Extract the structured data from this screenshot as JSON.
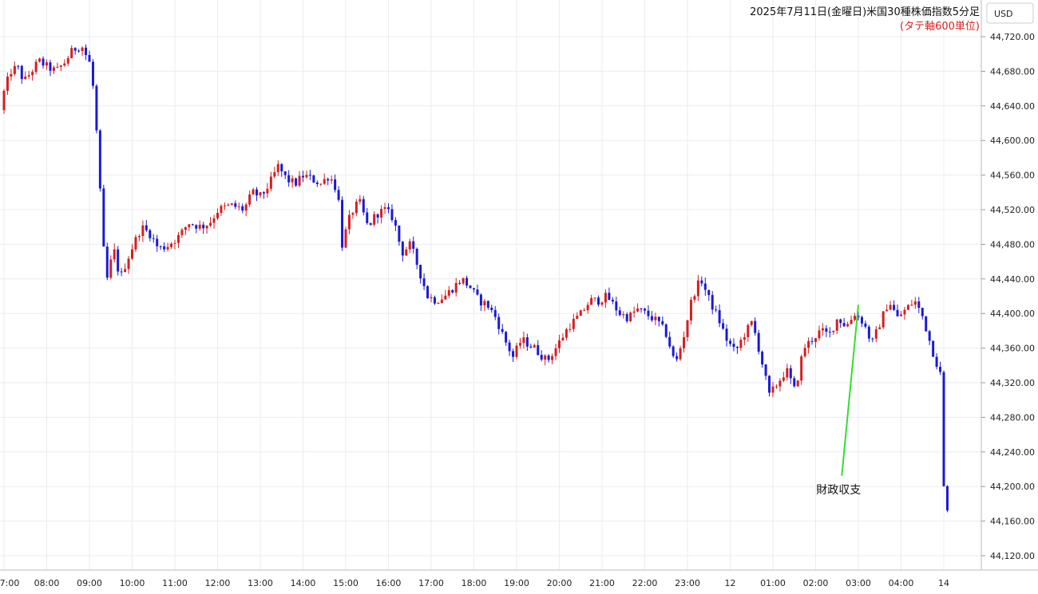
{
  "chart_data": {
    "type": "candlestick",
    "title": "2025年7月11日(金曜日)米国30種株価指数5分足",
    "subtitle": "(タテ軸600単位)",
    "currency_badge": "USD",
    "ylim": [
      44110,
      44750
    ],
    "y_ticks": [
      44120,
      44160,
      44200,
      44240,
      44280,
      44320,
      44360,
      44400,
      44440,
      44480,
      44520,
      44560,
      44600,
      44640,
      44680,
      44720
    ],
    "y_tick_labels": [
      "44,120.00",
      "44,160.00",
      "44,200.00",
      "44,240.00",
      "44,280.00",
      "44,320.00",
      "44,360.00",
      "44,400.00",
      "44,440.00",
      "44,480.00",
      "44,520.00",
      "44,560.00",
      "44,600.00",
      "44,640.00",
      "44,680.00",
      "44,720.00"
    ],
    "x_ticks": [
      {
        "label": "7:00",
        "hour": 7
      },
      {
        "label": "08:00",
        "hour": 8
      },
      {
        "label": "09:00",
        "hour": 9
      },
      {
        "label": "10:00",
        "hour": 10
      },
      {
        "label": "11:00",
        "hour": 11
      },
      {
        "label": "12:00",
        "hour": 12
      },
      {
        "label": "13:00",
        "hour": 13
      },
      {
        "label": "14:00",
        "hour": 14
      },
      {
        "label": "15:00",
        "hour": 15
      },
      {
        "label": "16:00",
        "hour": 16
      },
      {
        "label": "17:00",
        "hour": 17
      },
      {
        "label": "18:00",
        "hour": 18
      },
      {
        "label": "19:00",
        "hour": 19
      },
      {
        "label": "20:00",
        "hour": 20
      },
      {
        "label": "21:00",
        "hour": 21
      },
      {
        "label": "22:00",
        "hour": 22
      },
      {
        "label": "23:00",
        "hour": 23
      },
      {
        "label": "12",
        "hour": 24
      },
      {
        "label": "01:00",
        "hour": 25
      },
      {
        "label": "02:00",
        "hour": 26
      },
      {
        "label": "03:00",
        "hour": 27
      },
      {
        "label": "04:00",
        "hour": 28
      },
      {
        "label": "14",
        "hour": 29
      }
    ],
    "x_range_hours": [
      7.0,
      29.2
    ],
    "bar_minutes": 5,
    "start_hour": 7.0,
    "up_color": "#d61f1f",
    "down_color": "#1a1ad6",
    "grid": true,
    "annotation": {
      "text": "財政収支",
      "hour": 26.5,
      "price": 44205,
      "target_hour": 27.0,
      "target_price": 44410,
      "line_color": "#33dd33"
    },
    "anchors": [
      [
        7.0,
        44635
      ],
      [
        7.1,
        44660
      ],
      [
        7.25,
        44680
      ],
      [
        7.4,
        44685
      ],
      [
        7.55,
        44668
      ],
      [
        7.7,
        44678
      ],
      [
        7.9,
        44692
      ],
      [
        8.1,
        44685
      ],
      [
        8.3,
        44680
      ],
      [
        8.5,
        44690
      ],
      [
        8.7,
        44705
      ],
      [
        8.9,
        44710
      ],
      [
        9.1,
        44688
      ],
      [
        9.2,
        44650
      ],
      [
        9.3,
        44570
      ],
      [
        9.4,
        44480
      ],
      [
        9.5,
        44440
      ],
      [
        9.65,
        44475
      ],
      [
        9.8,
        44440
      ],
      [
        9.95,
        44460
      ],
      [
        10.1,
        44478
      ],
      [
        10.3,
        44500
      ],
      [
        10.5,
        44492
      ],
      [
        10.7,
        44475
      ],
      [
        10.9,
        44478
      ],
      [
        11.2,
        44490
      ],
      [
        11.4,
        44505
      ],
      [
        11.7,
        44500
      ],
      [
        11.9,
        44505
      ],
      [
        12.1,
        44520
      ],
      [
        12.4,
        44525
      ],
      [
        12.7,
        44520
      ],
      [
        12.9,
        44540
      ],
      [
        13.1,
        44535
      ],
      [
        13.3,
        44550
      ],
      [
        13.5,
        44570
      ],
      [
        13.7,
        44555
      ],
      [
        13.9,
        44550
      ],
      [
        14.1,
        44560
      ],
      [
        14.3,
        44555
      ],
      [
        14.5,
        44550
      ],
      [
        14.7,
        44560
      ],
      [
        14.9,
        44540
      ],
      [
        15.0,
        44480
      ],
      [
        15.2,
        44515
      ],
      [
        15.4,
        44530
      ],
      [
        15.6,
        44500
      ],
      [
        15.8,
        44515
      ],
      [
        16.0,
        44520
      ],
      [
        16.2,
        44510
      ],
      [
        16.4,
        44470
      ],
      [
        16.6,
        44480
      ],
      [
        16.8,
        44450
      ],
      [
        17.0,
        44420
      ],
      [
        17.2,
        44415
      ],
      [
        17.4,
        44420
      ],
      [
        17.6,
        44430
      ],
      [
        17.8,
        44440
      ],
      [
        18.0,
        44430
      ],
      [
        18.2,
        44415
      ],
      [
        18.4,
        44410
      ],
      [
        18.6,
        44395
      ],
      [
        18.8,
        44370
      ],
      [
        19.0,
        44350
      ],
      [
        19.2,
        44370
      ],
      [
        19.5,
        44360
      ],
      [
        19.8,
        44345
      ],
      [
        20.0,
        44360
      ],
      [
        20.3,
        44385
      ],
      [
        20.6,
        44400
      ],
      [
        20.8,
        44415
      ],
      [
        21.0,
        44415
      ],
      [
        21.2,
        44420
      ],
      [
        21.5,
        44400
      ],
      [
        21.7,
        44395
      ],
      [
        21.9,
        44405
      ],
      [
        22.1,
        44400
      ],
      [
        22.4,
        44390
      ],
      [
        22.6,
        44375
      ],
      [
        22.8,
        44340
      ],
      [
        23.0,
        44375
      ],
      [
        23.2,
        44420
      ],
      [
        23.4,
        44440
      ],
      [
        23.6,
        44415
      ],
      [
        23.8,
        44395
      ],
      [
        24.0,
        44370
      ],
      [
        24.2,
        44355
      ],
      [
        24.4,
        44375
      ],
      [
        24.6,
        44390
      ],
      [
        24.8,
        44350
      ],
      [
        25.0,
        44305
      ],
      [
        25.2,
        44320
      ],
      [
        25.4,
        44335
      ],
      [
        25.6,
        44310
      ],
      [
        25.8,
        44360
      ],
      [
        26.0,
        44370
      ],
      [
        26.2,
        44380
      ],
      [
        26.4,
        44375
      ],
      [
        26.6,
        44395
      ],
      [
        26.8,
        44385
      ],
      [
        27.0,
        44400
      ],
      [
        27.2,
        44390
      ],
      [
        27.4,
        44365
      ],
      [
        27.6,
        44390
      ],
      [
        27.8,
        44415
      ],
      [
        28.0,
        44395
      ],
      [
        28.2,
        44405
      ],
      [
        28.4,
        44415
      ],
      [
        28.6,
        44395
      ],
      [
        28.8,
        44360
      ],
      [
        29.0,
        44330
      ],
      [
        29.05,
        44320
      ],
      [
        29.08,
        44200
      ],
      [
        29.15,
        44170
      ]
    ]
  }
}
